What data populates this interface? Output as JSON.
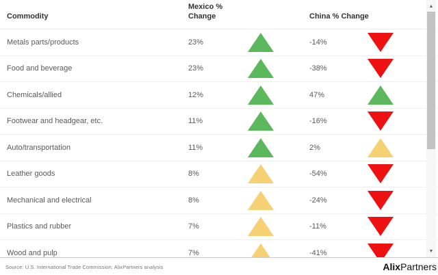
{
  "colors": {
    "up_strong": "#5CB85C",
    "up_moderate": "#F6D173",
    "down": "#EE1111",
    "header_text": "#333333",
    "body_text": "#595959",
    "row_border": "#EFEFEF",
    "table_bottom_border": "#C9C9C9",
    "scrollbar_track": "#F6F6F6",
    "scrollbar_thumb": "#C2C2C2",
    "scrollbar_arrow": "#606060",
    "source_text": "#757575",
    "logo_text": "#111111"
  },
  "header": {
    "commodity_label": "Commodity",
    "mexico_label": "Mexico % Change",
    "china_label": "China % Change"
  },
  "rows": [
    {
      "commodity": "Metals parts/products",
      "mexico_value": "23%",
      "mexico_trend": "up-green",
      "china_value": "-14%",
      "china_trend": "down-red"
    },
    {
      "commodity": "Food and beverage",
      "mexico_value": "23%",
      "mexico_trend": "up-green",
      "china_value": "-38%",
      "china_trend": "down-red"
    },
    {
      "commodity": "Chemicals/allied",
      "mexico_value": "12%",
      "mexico_trend": "up-green",
      "china_value": "47%",
      "china_trend": "up-green"
    },
    {
      "commodity": "Footwear and headgear, etc.",
      "mexico_value": "11%",
      "mexico_trend": "up-green",
      "china_value": "-16%",
      "china_trend": "down-red"
    },
    {
      "commodity": "Auto/transportation",
      "mexico_value": "11%",
      "mexico_trend": "up-green",
      "china_value": "2%",
      "china_trend": "up-yellow"
    },
    {
      "commodity": "Leather goods",
      "mexico_value": "8%",
      "mexico_trend": "up-yellow",
      "china_value": "-54%",
      "china_trend": "down-red"
    },
    {
      "commodity": "Mechanical and electrical",
      "mexico_value": "8%",
      "mexico_trend": "up-yellow",
      "china_value": "-24%",
      "china_trend": "down-red"
    },
    {
      "commodity": "Plastics and rubber",
      "mexico_value": "7%",
      "mexico_trend": "up-yellow",
      "china_value": "-11%",
      "china_trend": "down-red"
    },
    {
      "commodity": "Wood and pulp",
      "mexico_value": "7%",
      "mexico_trend": "up-yellow",
      "china_value": "-41%",
      "china_trend": "down-red"
    }
  ],
  "scrollbar": {
    "up_icon": "▲",
    "down_icon": "▼"
  },
  "footer": {
    "source": "Source: U.S. International Trade Commission; AlixPartners analysis",
    "logo_bold": "Alix",
    "logo_regular": "Partners"
  },
  "chart_data": {
    "type": "table",
    "title": "Commodity trade % change: Mexico vs China",
    "columns": [
      "Commodity",
      "Mexico % Change",
      "China % Change"
    ],
    "rows": [
      {
        "commodity": "Metals parts/products",
        "mexico_pct": 23,
        "china_pct": -14
      },
      {
        "commodity": "Food and beverage",
        "mexico_pct": 23,
        "china_pct": -38
      },
      {
        "commodity": "Chemicals/allied",
        "mexico_pct": 12,
        "china_pct": 47
      },
      {
        "commodity": "Footwear and headgear, etc.",
        "mexico_pct": 11,
        "china_pct": -16
      },
      {
        "commodity": "Auto/transportation",
        "mexico_pct": 11,
        "china_pct": 2
      },
      {
        "commodity": "Leather goods",
        "mexico_pct": 8,
        "china_pct": -54
      },
      {
        "commodity": "Mechanical and electrical",
        "mexico_pct": 8,
        "china_pct": -24
      },
      {
        "commodity": "Plastics and rubber",
        "mexico_pct": 7,
        "china_pct": -11
      },
      {
        "commodity": "Wood and pulp",
        "mexico_pct": 7,
        "china_pct": -41
      }
    ],
    "indicator_legend": {
      "up-green": "green up triangle = larger increase",
      "up-yellow": "yellow up triangle = smaller increase",
      "down-red": "red down triangle = decrease"
    }
  }
}
